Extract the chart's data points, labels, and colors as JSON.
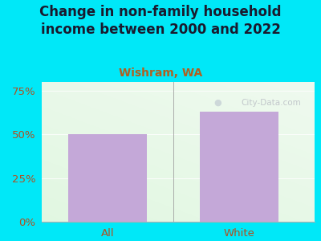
{
  "title": "Change in non-family household\nincome between 2000 and 2022",
  "subtitle": "Wishram, WA",
  "categories": [
    "All",
    "White"
  ],
  "values": [
    50,
    63
  ],
  "bar_color": "#c4a8d8",
  "title_color": "#1a1a2e",
  "subtitle_color": "#b06020",
  "tick_label_color": "#b05020",
  "background_outer": "#00e8f8",
  "background_grad_topleft": "#f0f8ec",
  "background_grad_bottomright": "#e8f8f4",
  "ylim": [
    0,
    80
  ],
  "yticks": [
    0,
    25,
    50,
    75
  ],
  "ytick_labels": [
    "0%",
    "25%",
    "50%",
    "75%"
  ],
  "watermark": "City-Data.com",
  "title_fontsize": 12,
  "subtitle_fontsize": 10,
  "tick_fontsize": 9.5
}
